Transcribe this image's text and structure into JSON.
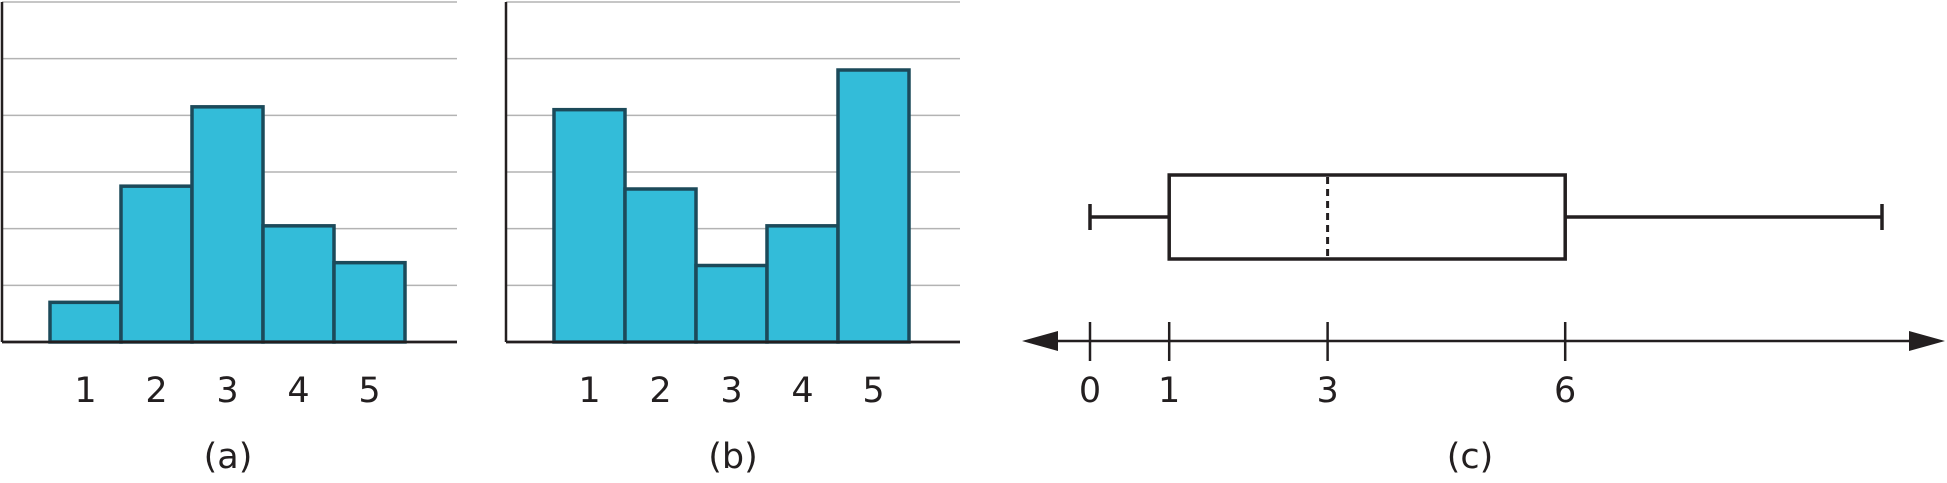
{
  "chart_data": [
    {
      "type": "bar",
      "panel_label": "(a)",
      "categories": [
        "1",
        "2",
        "3",
        "4",
        "5"
      ],
      "values": [
        0.7,
        2.75,
        4.15,
        2.05,
        1.4
      ],
      "ylim": [
        0,
        6
      ],
      "grid": true
    },
    {
      "type": "bar",
      "panel_label": "(b)",
      "categories": [
        "1",
        "2",
        "3",
        "4",
        "5"
      ],
      "values": [
        4.1,
        2.7,
        1.35,
        2.05,
        4.8
      ],
      "ylim": [
        0,
        6
      ],
      "grid": true
    },
    {
      "type": "box",
      "panel_label": "(c)",
      "min": 0,
      "q1": 1,
      "median": 3,
      "q3": 6,
      "max": 10,
      "ticks": [
        "0",
        "1",
        "3",
        "6"
      ],
      "tick_values": [
        0,
        1,
        3,
        6
      ]
    }
  ]
}
